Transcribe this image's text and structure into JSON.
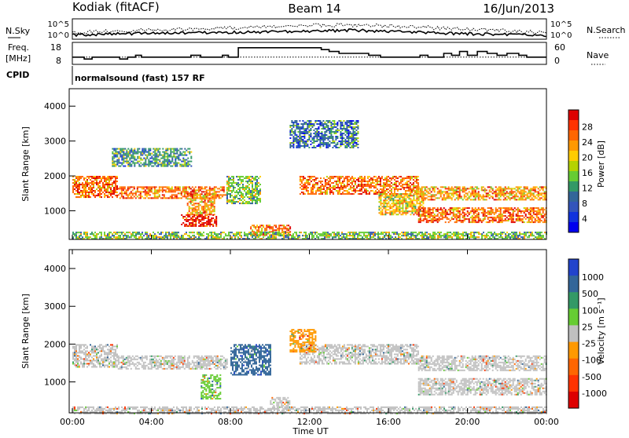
{
  "header": {
    "station": "Kodiak (fitACF)",
    "beam": "Beam 14",
    "date": "16/Jun/2013"
  },
  "noise_panel": {
    "left_label": "N.Sky",
    "left_ticks": [
      "10^5",
      "10^0"
    ],
    "right_label": "N.Search",
    "right_ticks": [
      "10^5",
      "10^0"
    ]
  },
  "freq_panel": {
    "left_label_1": "Freq.",
    "left_label_2": "[MHz]",
    "left_ticks": [
      "18",
      "8"
    ],
    "right_label": "Nave",
    "right_ticks": [
      "60",
      "0"
    ]
  },
  "cpid": {
    "label": "CPID",
    "program": "normalsound (fast) 157 RF"
  },
  "chart_data": [
    {
      "type": "line",
      "panel": "noise",
      "x_unit": "hours UT",
      "series": [
        {
          "name": "N.Sky",
          "x": [
            0,
            2,
            4,
            6,
            8,
            10,
            12,
            14,
            16,
            18,
            20,
            22,
            24
          ],
          "y_log10": [
            0.5,
            0.8,
            1.0,
            1.2,
            1.3,
            1.4,
            1.6,
            1.9,
            1.6,
            1.2,
            0.9,
            0.7,
            0.5
          ]
        },
        {
          "name": "N.Search",
          "x": [
            0,
            2,
            4,
            6,
            8,
            10,
            12,
            14,
            16,
            18,
            20,
            22,
            24
          ],
          "y_log10": [
            1.2,
            1.6,
            2.0,
            2.3,
            2.6,
            2.9,
            3.3,
            3.4,
            3.2,
            2.7,
            2.2,
            1.7,
            1.3
          ]
        }
      ]
    },
    {
      "type": "line",
      "panel": "frequency",
      "x_unit": "hours UT",
      "ylim": [
        8,
        18
      ],
      "series": [
        {
          "name": "Freq",
          "x": [
            0,
            0.6,
            1.0,
            2.4,
            2.8,
            3.2,
            3.5,
            4.0,
            6.0,
            6.5,
            7.6,
            7.9,
            8.4,
            12.6,
            13.0,
            13.5,
            15.0,
            15.6,
            16.4,
            17.6,
            18.0,
            18.8,
            19.2,
            19.6,
            20.0,
            20.5,
            21.0,
            21.5,
            22.0,
            22.6,
            23.0,
            23.5,
            24
          ],
          "y": [
            11,
            10,
            11,
            10,
            11,
            12,
            11,
            11,
            12,
            11,
            12,
            11,
            16,
            15,
            14,
            13,
            12,
            11,
            11,
            12,
            11,
            13,
            12,
            14,
            12,
            14,
            13,
            12,
            13,
            12,
            11,
            11,
            11
          ]
        },
        {
          "name": "Nave",
          "x": [
            0,
            24
          ],
          "y": [
            11,
            11
          ]
        }
      ]
    },
    {
      "type": "heatmap",
      "panel": "power",
      "ylabel": "Slant Range [km]",
      "yticks": [
        "4000",
        "3000",
        "2000",
        "1000"
      ],
      "ylim": [
        180,
        4500
      ],
      "xlim": [
        0,
        24
      ],
      "colorbar": {
        "label": "Power [dB]",
        "ticks": [
          "28",
          "24",
          "20",
          "16",
          "12",
          "8",
          "4"
        ],
        "colors": [
          "#dd0000",
          "#ff3300",
          "#ff6600",
          "#ff9900",
          "#ffcc00",
          "#b4d200",
          "#66cc33",
          "#339966",
          "#336699",
          "#3355bb",
          "#1133dd",
          "#0000ee"
        ]
      },
      "bands": [
        {
          "t0": 0.0,
          "t1": 2.3,
          "r0": 1400,
          "r1": 2000,
          "core": "#ff6600"
        },
        {
          "t0": 2.3,
          "t1": 7.8,
          "r0": 1350,
          "r1": 1700,
          "core": "#ff6600"
        },
        {
          "t0": 5.8,
          "t1": 7.2,
          "r0": 900,
          "r1": 1500,
          "core": "#ff9900"
        },
        {
          "t0": 5.5,
          "t1": 7.3,
          "r0": 550,
          "r1": 900,
          "core": "#dd0000"
        },
        {
          "t0": 7.8,
          "t1": 9.5,
          "r0": 1200,
          "r1": 2000,
          "core": "#66cc33"
        },
        {
          "t0": 9.0,
          "t1": 11.0,
          "r0": 300,
          "r1": 600,
          "core": "#ff6600"
        },
        {
          "t0": 11.5,
          "t1": 17.5,
          "r0": 1500,
          "r1": 2000,
          "core": "#ff6600"
        },
        {
          "t0": 15.5,
          "t1": 17.8,
          "r0": 900,
          "r1": 1500,
          "core": "#ffcc00"
        },
        {
          "t0": 17.5,
          "t1": 24.0,
          "r0": 1300,
          "r1": 1700,
          "core": "#ff9900"
        },
        {
          "t0": 17.5,
          "t1": 24.0,
          "r0": 650,
          "r1": 1100,
          "core": "#ff6600"
        },
        {
          "t0": 2.0,
          "t1": 6.0,
          "r0": 2300,
          "r1": 2800,
          "core": "#339966"
        },
        {
          "t0": 11.0,
          "t1": 14.5,
          "r0": 2800,
          "r1": 3600,
          "core": "#336699"
        },
        {
          "t0": 0.0,
          "t1": 24.0,
          "r0": 180,
          "r1": 400,
          "core": "#66cc33"
        }
      ]
    },
    {
      "type": "heatmap",
      "panel": "velocity",
      "ylabel": "Slant Range [km]",
      "yticks": [
        "4000",
        "3000",
        "2000",
        "1000"
      ],
      "ylim": [
        180,
        4500
      ],
      "xlim": [
        0,
        24
      ],
      "xticks": [
        "00:00",
        "04:00",
        "08:00",
        "12:00",
        "16:00",
        "20:00",
        "00:00"
      ],
      "xlabel": "Time UT",
      "colorbar": {
        "label": "Velocity [m s⁻¹]",
        "ticks": [
          "1000",
          "500",
          "100",
          "25",
          "-25",
          "-100",
          "-500",
          "-1000"
        ],
        "colors": [
          "#2244cc",
          "#336699",
          "#339966",
          "#66cc33",
          "#c0c0c0",
          "#ff9900",
          "#ff6600",
          "#ff3300",
          "#dd0000"
        ]
      },
      "bands": [
        {
          "t0": 0.0,
          "t1": 2.3,
          "r0": 1400,
          "r1": 2000,
          "core": "#c0c0c0"
        },
        {
          "t0": 2.3,
          "t1": 7.8,
          "r0": 1350,
          "r1": 1700,
          "core": "#c0c0c0"
        },
        {
          "t0": 6.5,
          "t1": 7.5,
          "r0": 550,
          "r1": 1200,
          "core": "#66cc33"
        },
        {
          "t0": 8.0,
          "t1": 10.0,
          "r0": 1200,
          "r1": 2000,
          "core": "#336699"
        },
        {
          "t0": 10.0,
          "t1": 11.0,
          "r0": 300,
          "r1": 600,
          "core": "#c0c0c0"
        },
        {
          "t0": 11.5,
          "t1": 17.5,
          "r0": 1500,
          "r1": 2000,
          "core": "#c0c0c0"
        },
        {
          "t0": 17.5,
          "t1": 24.0,
          "r0": 1300,
          "r1": 1700,
          "core": "#c0c0c0"
        },
        {
          "t0": 17.5,
          "t1": 24.0,
          "r0": 650,
          "r1": 1100,
          "core": "#c0c0c0"
        },
        {
          "t0": 11.0,
          "t1": 12.3,
          "r0": 1800,
          "r1": 2400,
          "core": "#ff9900"
        },
        {
          "t0": 0.0,
          "t1": 24.0,
          "r0": 180,
          "r1": 350,
          "core": "#c0c0c0"
        }
      ]
    }
  ]
}
